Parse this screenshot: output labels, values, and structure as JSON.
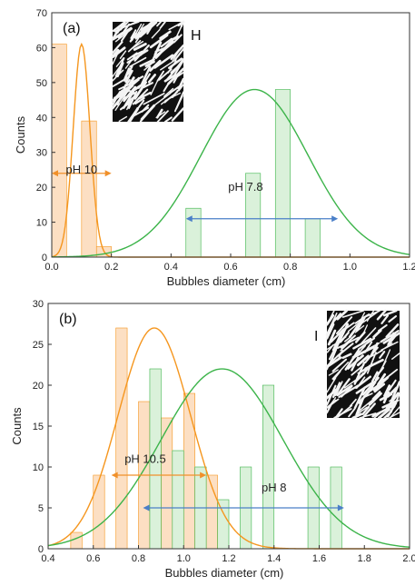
{
  "chart_data": [
    {
      "type": "bar",
      "panel_label": "(a)",
      "corner_label": "H",
      "xlabel": "Bubbles diameter (cm)",
      "ylabel": "Counts",
      "xlim": [
        0,
        1.2
      ],
      "ylim": [
        0,
        70
      ],
      "x_ticks": [
        "0.0",
        "0.2",
        "0.4",
        "0.6",
        "0.8",
        "1.0",
        "1.2"
      ],
      "y_ticks": [
        "0",
        "10",
        "20",
        "30",
        "40",
        "50",
        "60",
        "70"
      ],
      "series": [
        {
          "name": "pH 10",
          "color": "#f5961e",
          "fill": "#fbd9b8",
          "bars": [
            {
              "x": 0.025,
              "width": 0.05,
              "count": 61
            },
            {
              "x": 0.125,
              "width": 0.05,
              "count": 39
            },
            {
              "x": 0.175,
              "width": 0.05,
              "count": 3
            }
          ],
          "fit": {
            "type": "gaussian",
            "mean": 0.1,
            "sigma": 0.028,
            "amplitude": 61
          },
          "range": [
            0.0,
            0.2
          ]
        },
        {
          "name": "pH 7.8",
          "color": "#3cb44a",
          "fill": "#d4efd4",
          "bars": [
            {
              "x": 0.475,
              "width": 0.05,
              "count": 14
            },
            {
              "x": 0.675,
              "width": 0.05,
              "count": 24
            },
            {
              "x": 0.775,
              "width": 0.05,
              "count": 48
            },
            {
              "x": 0.875,
              "width": 0.05,
              "count": 11
            }
          ],
          "fit": {
            "type": "gaussian",
            "mean": 0.68,
            "sigma": 0.18,
            "amplitude": 48
          },
          "range": [
            0.45,
            0.96
          ]
        }
      ],
      "annotations": [
        {
          "text": "pH 10",
          "x": 0.1,
          "y": 24
        },
        {
          "text": "pH 7.8",
          "x": 0.65,
          "y": 19
        }
      ]
    },
    {
      "type": "bar",
      "panel_label": "(b)",
      "corner_label": "I",
      "xlabel": "Bubbles diameter (cm)",
      "ylabel": "Counts",
      "xlim": [
        0.4,
        2.0
      ],
      "ylim": [
        0,
        30
      ],
      "x_ticks": [
        "0.4",
        "0.6",
        "0.8",
        "1.0",
        "1.2",
        "1.4",
        "1.6",
        "1.8",
        "2.0"
      ],
      "y_ticks": [
        "0",
        "5",
        "10",
        "15",
        "20",
        "25",
        "30"
      ],
      "series": [
        {
          "name": "pH 10.5",
          "color": "#f5961e",
          "fill": "#fbd9b8",
          "bars": [
            {
              "x": 0.525,
              "width": 0.05,
              "count": 2
            },
            {
              "x": 0.625,
              "width": 0.05,
              "count": 9
            },
            {
              "x": 0.725,
              "width": 0.05,
              "count": 27
            },
            {
              "x": 0.825,
              "width": 0.05,
              "count": 18
            },
            {
              "x": 0.925,
              "width": 0.05,
              "count": 16
            },
            {
              "x": 1.025,
              "width": 0.05,
              "count": 19
            },
            {
              "x": 1.125,
              "width": 0.05,
              "count": 9
            }
          ],
          "fit": {
            "type": "gaussian",
            "mean": 0.87,
            "sigma": 0.16,
            "amplitude": 27
          },
          "range": [
            0.68,
            1.1
          ]
        },
        {
          "name": "pH 8",
          "color": "#3cb44a",
          "fill": "#d4efd4",
          "bars": [
            {
              "x": 0.875,
              "width": 0.05,
              "count": 22
            },
            {
              "x": 0.975,
              "width": 0.05,
              "count": 12
            },
            {
              "x": 1.075,
              "width": 0.05,
              "count": 10
            },
            {
              "x": 1.175,
              "width": 0.05,
              "count": 6
            },
            {
              "x": 1.275,
              "width": 0.05,
              "count": 10
            },
            {
              "x": 1.375,
              "width": 0.05,
              "count": 20
            },
            {
              "x": 1.575,
              "width": 0.05,
              "count": 10
            },
            {
              "x": 1.675,
              "width": 0.05,
              "count": 10
            }
          ],
          "fit": {
            "type": "gaussian",
            "mean": 1.17,
            "sigma": 0.27,
            "amplitude": 22
          },
          "range": [
            0.82,
            1.71
          ]
        }
      ],
      "annotations": [
        {
          "text": "pH 10.5",
          "x": 0.83,
          "y": 10.5
        },
        {
          "text": "pH 8",
          "x": 1.4,
          "y": 7
        }
      ]
    }
  ]
}
